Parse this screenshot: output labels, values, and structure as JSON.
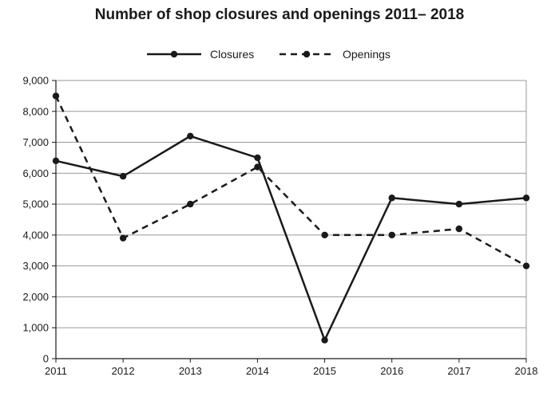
{
  "chart_data": {
    "type": "line",
    "title": "Number of shop closures and openings 2011– 2018",
    "xlabel": "",
    "ylabel": "",
    "categories": [
      "2011",
      "2012",
      "2013",
      "2014",
      "2015",
      "2016",
      "2017",
      "2018"
    ],
    "ylim": [
      0,
      9000
    ],
    "yticks": [
      "0",
      "1,000",
      "2,000",
      "3,000",
      "4,000",
      "5,000",
      "6,000",
      "7,000",
      "8,000",
      "9,000"
    ],
    "grid": true,
    "legend_position": "top-center",
    "series": [
      {
        "name": "Closures",
        "style": "solid",
        "color": "#1a1a1a",
        "values": [
          6400,
          5900,
          7200,
          6500,
          600,
          5200,
          5000,
          5200
        ]
      },
      {
        "name": "Openings",
        "style": "dashed",
        "color": "#1a1a1a",
        "values": [
          8500,
          3900,
          5000,
          6200,
          4000,
          4000,
          4200,
          3000
        ]
      }
    ]
  }
}
